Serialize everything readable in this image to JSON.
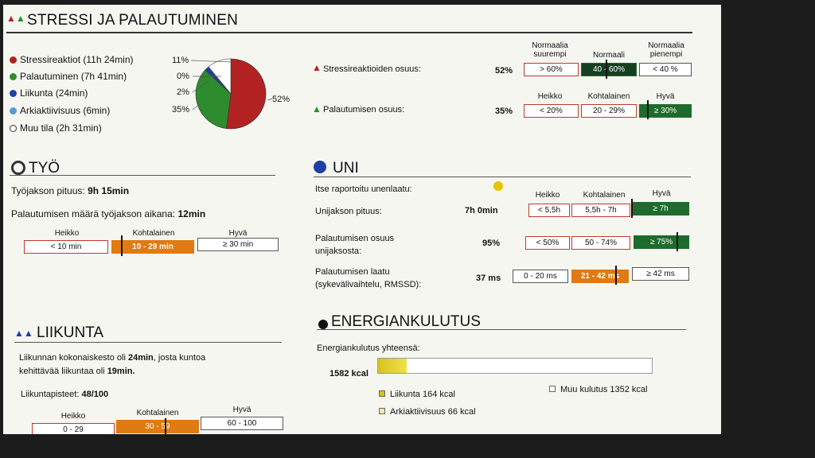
{
  "stress": {
    "title": "STRESSI JA PALAUTUMINEN",
    "legend": [
      {
        "label": "Stressireaktiot (11h 24min)",
        "color": "#b22222"
      },
      {
        "label": "Palautuminen (7h 41min)",
        "color": "#2e8b2e"
      },
      {
        "label": "Liikunta (24min)",
        "color": "#1f3fa8"
      },
      {
        "label": "Arkiaktiivisuus (6min)",
        "color": "#5a9bd5"
      },
      {
        "label": "Muu tila (2h 31min)",
        "color": "#ffffff"
      }
    ],
    "pie_labels": [
      "11%",
      "0%",
      "2%",
      "35%",
      "52%"
    ],
    "pie_values": [
      52,
      35,
      2,
      0,
      11
    ],
    "stress_row": {
      "label": "Stressireaktioiden osuus:",
      "value": "52%"
    },
    "stress_headers": [
      "Normaalia suurempi",
      "Normaali",
      "Normaalia pienempi"
    ],
    "stress_boxes": [
      "> 60%",
      "40 - 60%",
      "< 40 %"
    ],
    "recovery_row": {
      "label": "Palautumisen osuus:",
      "value": "35%"
    },
    "recovery_headers": [
      "Heikko",
      "Kohtalainen",
      "Hyvä"
    ],
    "recovery_boxes": [
      "< 20%",
      "20 - 29%",
      "≥ 30%"
    ]
  },
  "work": {
    "title": "TYÖ",
    "period_label": "Työjakson pituus:",
    "period_value": "9h 15min",
    "recovery_label": "Palautumisen määrä työjakson aikana:",
    "recovery_value": "12min",
    "headers": [
      "Heikko",
      "Kohtalainen",
      "Hyvä"
    ],
    "boxes": [
      "< 10 min",
      "10 - 29 min",
      "≥ 30 min"
    ]
  },
  "exercise": {
    "title": "LIIKUNTA",
    "text_1": "Liikunnan kokonaiskesto oli ",
    "text_1_bold": "24min",
    "text_2": ", josta kuntoa",
    "text_3": "kehittävää liikuntaa oli ",
    "text_3_bold": "19min.",
    "points_label": "Liikuntapisteet:",
    "points_value": "48/100",
    "headers": [
      "Heikko",
      "Kohtalainen",
      "Hyvä"
    ],
    "boxes": [
      "0 - 29",
      "30 - 59",
      "60 - 100"
    ]
  },
  "sleep": {
    "title": "UNI",
    "self_report_label": "Itse raportoitu unenlaatu:",
    "headers": [
      "Heikko",
      "Kohtalainen",
      "Hyvä"
    ],
    "rows": [
      {
        "label": "Unijakson pituus:",
        "value": "7h 0min",
        "boxes": [
          "< 5,5h",
          "5,5h - 7h",
          "≥ 7h"
        ]
      },
      {
        "label": "Palautumisen osuus unijaksosta:",
        "value": "95%",
        "boxes": [
          "< 50%",
          "50 - 74%",
          "≥ 75%"
        ]
      },
      {
        "label": "Palautumisen laatu (sykevälivaihtelu, RMSSD):",
        "value": "37 ms",
        "boxes": [
          "0 - 20 ms",
          "21 - 42 ms",
          "≥ 42 ms"
        ]
      }
    ]
  },
  "energy": {
    "title": "ENERGIANKULUTUS",
    "total_label": "Energiankulutus yhteensä:",
    "total_value": "1582 kcal",
    "bar_fraction": 0.104,
    "legend": [
      {
        "label": "Liikunta 164 kcal"
      },
      {
        "label": "Arkiaktiivisuus 66 kcal"
      },
      {
        "label": "Muu kulutus 1352 kcal"
      }
    ]
  }
}
